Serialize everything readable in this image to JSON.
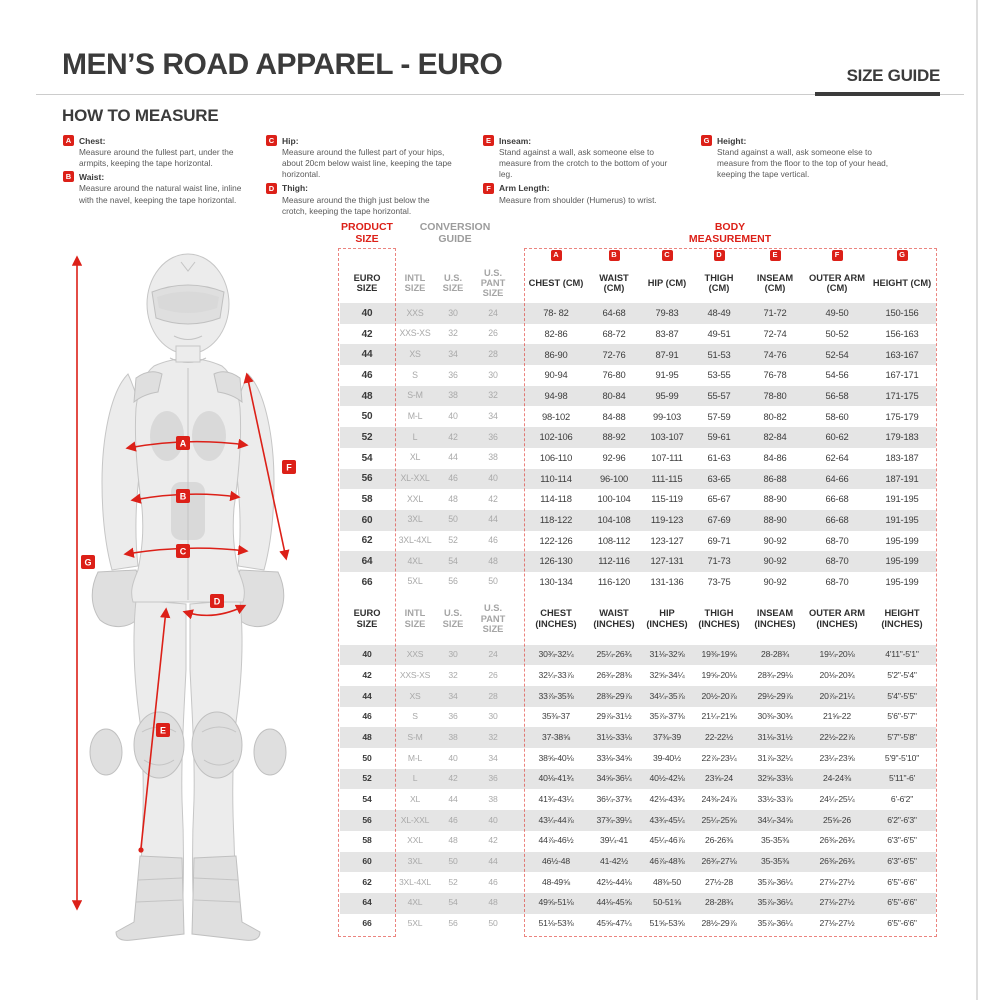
{
  "page": {
    "title": "MEN’S ROAD APPAREL - EURO",
    "size_guide_label": "SIZE GUIDE",
    "how_to_measure_title": "HOW TO MEASURE",
    "accent_red": "#dc2018",
    "zebra_gray": "#e5e5e5"
  },
  "measure_instructions": [
    {
      "letter": "A",
      "title": "Chest:",
      "text": "Measure around the fullest part, under the armpits, keeping the tape horizontal."
    },
    {
      "letter": "B",
      "title": "Waist:",
      "text": "Measure around the natural waist line, inline with the navel, keeping the tape horizontal."
    },
    {
      "letter": "C",
      "title": "Hip:",
      "text": "Measure around the fullest part of your hips, about 20cm below waist line, keeping the tape horizontal."
    },
    {
      "letter": "D",
      "title": "Thigh:",
      "text": "Measure around the thigh just below the crotch, keeping the tape horizontal."
    },
    {
      "letter": "E",
      "title": "Inseam:",
      "text": "Stand against a wall, ask someone else to measure from the crotch to the bottom of your leg."
    },
    {
      "letter": "F",
      "title": "Arm Length:",
      "text": "Measure from shoulder (Humerus) to wrist."
    },
    {
      "letter": "G",
      "title": "Height:",
      "text": "Stand against a wall, ask someone else to measure from the floor to the top of your head, keeping the tape vertical."
    }
  ],
  "figure_labels": [
    "A",
    "B",
    "C",
    "D",
    "E",
    "F",
    "G"
  ],
  "table": {
    "group_headers": {
      "product_size": "PRODUCT\nSIZE",
      "conversion_guide": "CONVERSION\nGUIDE",
      "body_measurement": "BODY\nMEASUREMENT"
    },
    "measure_letters": [
      "A",
      "B",
      "C",
      "D",
      "E",
      "F",
      "G"
    ],
    "cm_columns": [
      "EURO SIZE",
      "INTL SIZE",
      "U.S. SIZE",
      "U.S. PANT SIZE",
      "CHEST (CM)",
      "WAIST (CM)",
      "HIP (CM)",
      "THIGH (CM)",
      "INSEAM (CM)",
      "OUTER ARM (CM)",
      "HEIGHT (CM)"
    ],
    "cm_rows": [
      [
        "40",
        "XXS",
        "30",
        "24",
        "78- 82",
        "64-68",
        "79-83",
        "48-49",
        "71-72",
        "49-50",
        "150-156"
      ],
      [
        "42",
        "XXS-XS",
        "32",
        "26",
        "82-86",
        "68-72",
        "83-87",
        "49-51",
        "72-74",
        "50-52",
        "156-163"
      ],
      [
        "44",
        "XS",
        "34",
        "28",
        "86-90",
        "72-76",
        "87-91",
        "51-53",
        "74-76",
        "52-54",
        "163-167"
      ],
      [
        "46",
        "S",
        "36",
        "30",
        "90-94",
        "76-80",
        "91-95",
        "53-55",
        "76-78",
        "54-56",
        "167-171"
      ],
      [
        "48",
        "S-M",
        "38",
        "32",
        "94-98",
        "80-84",
        "95-99",
        "55-57",
        "78-80",
        "56-58",
        "171-175"
      ],
      [
        "50",
        "M-L",
        "40",
        "34",
        "98-102",
        "84-88",
        "99-103",
        "57-59",
        "80-82",
        "58-60",
        "175-179"
      ],
      [
        "52",
        "L",
        "42",
        "36",
        "102-106",
        "88-92",
        "103-107",
        "59-61",
        "82-84",
        "60-62",
        "179-183"
      ],
      [
        "54",
        "XL",
        "44",
        "38",
        "106-110",
        "92-96",
        "107-111",
        "61-63",
        "84-86",
        "62-64",
        "183-187"
      ],
      [
        "56",
        "XL-XXL",
        "46",
        "40",
        "110-114",
        "96-100",
        "111-115",
        "63-65",
        "86-88",
        "64-66",
        "187-191"
      ],
      [
        "58",
        "XXL",
        "48",
        "42",
        "114-118",
        "100-104",
        "115-119",
        "65-67",
        "88-90",
        "66-68",
        "191-195"
      ],
      [
        "60",
        "3XL",
        "50",
        "44",
        "118-122",
        "104-108",
        "119-123",
        "67-69",
        "88-90",
        "66-68",
        "191-195"
      ],
      [
        "62",
        "3XL-4XL",
        "52",
        "46",
        "122-126",
        "108-112",
        "123-127",
        "69-71",
        "90-92",
        "68-70",
        "195-199"
      ],
      [
        "64",
        "4XL",
        "54",
        "48",
        "126-130",
        "112-116",
        "127-131",
        "71-73",
        "90-92",
        "68-70",
        "195-199"
      ],
      [
        "66",
        "5XL",
        "56",
        "50",
        "130-134",
        "116-120",
        "131-136",
        "73-75",
        "90-92",
        "68-70",
        "195-199"
      ]
    ],
    "inch_columns": [
      "EURO SIZE",
      "INTL SIZE",
      "U.S. SIZE",
      "U.S. PANT SIZE",
      "CHEST (INCHES)",
      "WAIST (INCHES)",
      "HIP (INCHES)",
      "THIGH (INCHES)",
      "INSEAM (INCHES)",
      "OUTER ARM (INCHES)",
      "HEIGHT (INCHES)"
    ],
    "inch_rows": [
      [
        "40",
        "XXS",
        "30",
        "24",
        "30¾-32¼",
        "25¼-26¾",
        "31⅛-32⅝",
        "19⅜-19⅝",
        "28-28¾",
        "19¼-20⅛",
        "4'11\"-5'1\""
      ],
      [
        "42",
        "XXS-XS",
        "32",
        "26",
        "32¼-33⅞",
        "26¾-28⅜",
        "32⅝-34¼",
        "19⅝-20⅛",
        "28¾-29⅛",
        "20⅛-20¾",
        "5'2\"-5'4\""
      ],
      [
        "44",
        "XS",
        "34",
        "28",
        "33⅞-35⅜",
        "28⅜-29⅞",
        "34¼-35⅞",
        "20½-20⅞",
        "29½-29⅞",
        "20⅞-21¼",
        "5'4\"-5'5\""
      ],
      [
        "46",
        "S",
        "36",
        "30",
        "35⅜-37",
        "29⅞-31½",
        "35⅞-37⅜",
        "21¼-21⅝",
        "30⅜-30¾",
        "21⅝-22",
        "5'6\"-5'7\""
      ],
      [
        "48",
        "S-M",
        "38",
        "32",
        "37-38⅝",
        "31½-33⅛",
        "37⅜-39",
        "22-22½",
        "31⅛-31½",
        "22½-22⅞",
        "5'7\"-5'8\""
      ],
      [
        "50",
        "M-L",
        "40",
        "34",
        "38⅝-40⅛",
        "33⅛-34⅝",
        "39-40½",
        "22⅞-23¼",
        "31⅞-32¼",
        "23¼-23⅝",
        "5'9\"-5'10\""
      ],
      [
        "52",
        "L",
        "42",
        "36",
        "40⅛-41¾",
        "34⅝-36¼",
        "40½-42⅛",
        "23⅝-24",
        "32⅝-33⅛",
        "24-24⅜",
        "5'11\"-6'"
      ],
      [
        "54",
        "XL",
        "44",
        "38",
        "41¾-43¼",
        "36¼-37¾",
        "42⅛-43¾",
        "24⅜-24⅞",
        "33½-33⅞",
        "24¼-25¼",
        "6'-6'2\""
      ],
      [
        "56",
        "XL-XXL",
        "46",
        "40",
        "43¼-44⅞",
        "37¾-39¼",
        "43¾-45¼",
        "25¼-25⅝",
        "34¼-34⅝",
        "25⅝-26",
        "6'2\"-6'3\""
      ],
      [
        "58",
        "XXL",
        "48",
        "42",
        "44⅞-46½",
        "39¼-41",
        "45¼-46⅞",
        "26-26⅜",
        "35-35⅜",
        "26⅜-26¾",
        "6'3\"-6'5\""
      ],
      [
        "60",
        "3XL",
        "50",
        "44",
        "46½-48",
        "41-42½",
        "46⅞-48⅜",
        "26¾-27⅛",
        "35-35⅜",
        "26⅜-26¾",
        "6'3\"-6'5\""
      ],
      [
        "62",
        "3XL-4XL",
        "52",
        "46",
        "48-49⅝",
        "42½-44⅛",
        "48⅜-50",
        "27½-28",
        "35⅞-36¼",
        "27⅛-27½",
        "6'5\"-6'6\""
      ],
      [
        "64",
        "4XL",
        "54",
        "48",
        "49⅝-51⅛",
        "44⅛-45⅝",
        "50-51⅝",
        "28-28¾",
        "35⅞-36¼",
        "27⅛-27½",
        "6'5\"-6'6\""
      ],
      [
        "66",
        "5XL",
        "56",
        "50",
        "51⅛-53⅜",
        "45⅝-47¼",
        "51⅝-53⅝",
        "28½-29⅞",
        "35⅞-36¼",
        "27⅛-27½",
        "6'5\"-6'6\""
      ]
    ]
  }
}
